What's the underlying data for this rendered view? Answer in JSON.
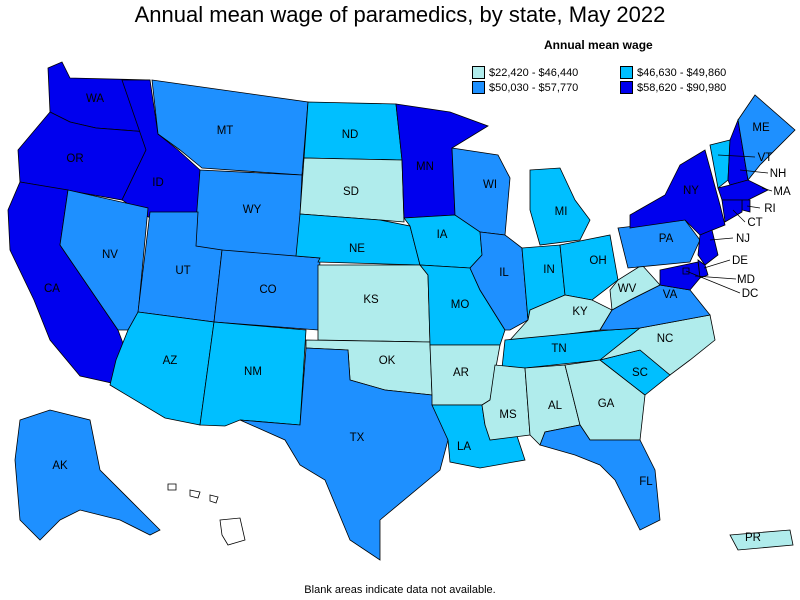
{
  "title": "Annual mean wage of paramedics, by state, May 2022",
  "legend": {
    "title": "Annual mean wage",
    "bins": [
      {
        "label": "$22,420 - $46,440",
        "color": "#b0ecec"
      },
      {
        "label": "$46,630 - $49,860",
        "color": "#00bfff"
      },
      {
        "label": "$50,030 - $57,770",
        "color": "#1e90ff"
      },
      {
        "label": "$58,620 - $90,980",
        "color": "#0000ee"
      }
    ]
  },
  "footnote": "Blank areas indicate data not available.",
  "states": [
    {
      "abbr": "WA",
      "bin": 3
    },
    {
      "abbr": "OR",
      "bin": 3
    },
    {
      "abbr": "CA",
      "bin": 3
    },
    {
      "abbr": "ID",
      "bin": 3
    },
    {
      "abbr": "NV",
      "bin": 2
    },
    {
      "abbr": "MT",
      "bin": 2
    },
    {
      "abbr": "WY",
      "bin": 2
    },
    {
      "abbr": "UT",
      "bin": 2
    },
    {
      "abbr": "AZ",
      "bin": 1
    },
    {
      "abbr": "CO",
      "bin": 2
    },
    {
      "abbr": "NM",
      "bin": 1
    },
    {
      "abbr": "ND",
      "bin": 1
    },
    {
      "abbr": "SD",
      "bin": 0
    },
    {
      "abbr": "NE",
      "bin": 1
    },
    {
      "abbr": "KS",
      "bin": 0
    },
    {
      "abbr": "OK",
      "bin": 0
    },
    {
      "abbr": "TX",
      "bin": 2
    },
    {
      "abbr": "MN",
      "bin": 3
    },
    {
      "abbr": "IA",
      "bin": 1
    },
    {
      "abbr": "MO",
      "bin": 1
    },
    {
      "abbr": "AR",
      "bin": 0
    },
    {
      "abbr": "LA",
      "bin": 1
    },
    {
      "abbr": "WI",
      "bin": 2
    },
    {
      "abbr": "IL",
      "bin": 2
    },
    {
      "abbr": "MI",
      "bin": 1
    },
    {
      "abbr": "IN",
      "bin": 1
    },
    {
      "abbr": "OH",
      "bin": 1
    },
    {
      "abbr": "KY",
      "bin": 0
    },
    {
      "abbr": "TN",
      "bin": 1
    },
    {
      "abbr": "MS",
      "bin": 0
    },
    {
      "abbr": "AL",
      "bin": 0
    },
    {
      "abbr": "GA",
      "bin": 0
    },
    {
      "abbr": "FL",
      "bin": 2
    },
    {
      "abbr": "SC",
      "bin": 1
    },
    {
      "abbr": "NC",
      "bin": 0
    },
    {
      "abbr": "VA",
      "bin": 2
    },
    {
      "abbr": "WV",
      "bin": 0
    },
    {
      "abbr": "PA",
      "bin": 2
    },
    {
      "abbr": "NY",
      "bin": 3
    },
    {
      "abbr": "VT",
      "bin": 1
    },
    {
      "abbr": "NH",
      "bin": 3
    },
    {
      "abbr": "ME",
      "bin": 2
    },
    {
      "abbr": "MA",
      "bin": 3
    },
    {
      "abbr": "RI",
      "bin": 3
    },
    {
      "abbr": "CT",
      "bin": 3
    },
    {
      "abbr": "NJ",
      "bin": 3
    },
    {
      "abbr": "DE",
      "bin": 3
    },
    {
      "abbr": "MD",
      "bin": 3
    },
    {
      "abbr": "DC",
      "bin": 3
    },
    {
      "abbr": "AK",
      "bin": 2
    },
    {
      "abbr": "HI",
      "bin": null
    },
    {
      "abbr": "PR",
      "bin": 0
    }
  ]
}
